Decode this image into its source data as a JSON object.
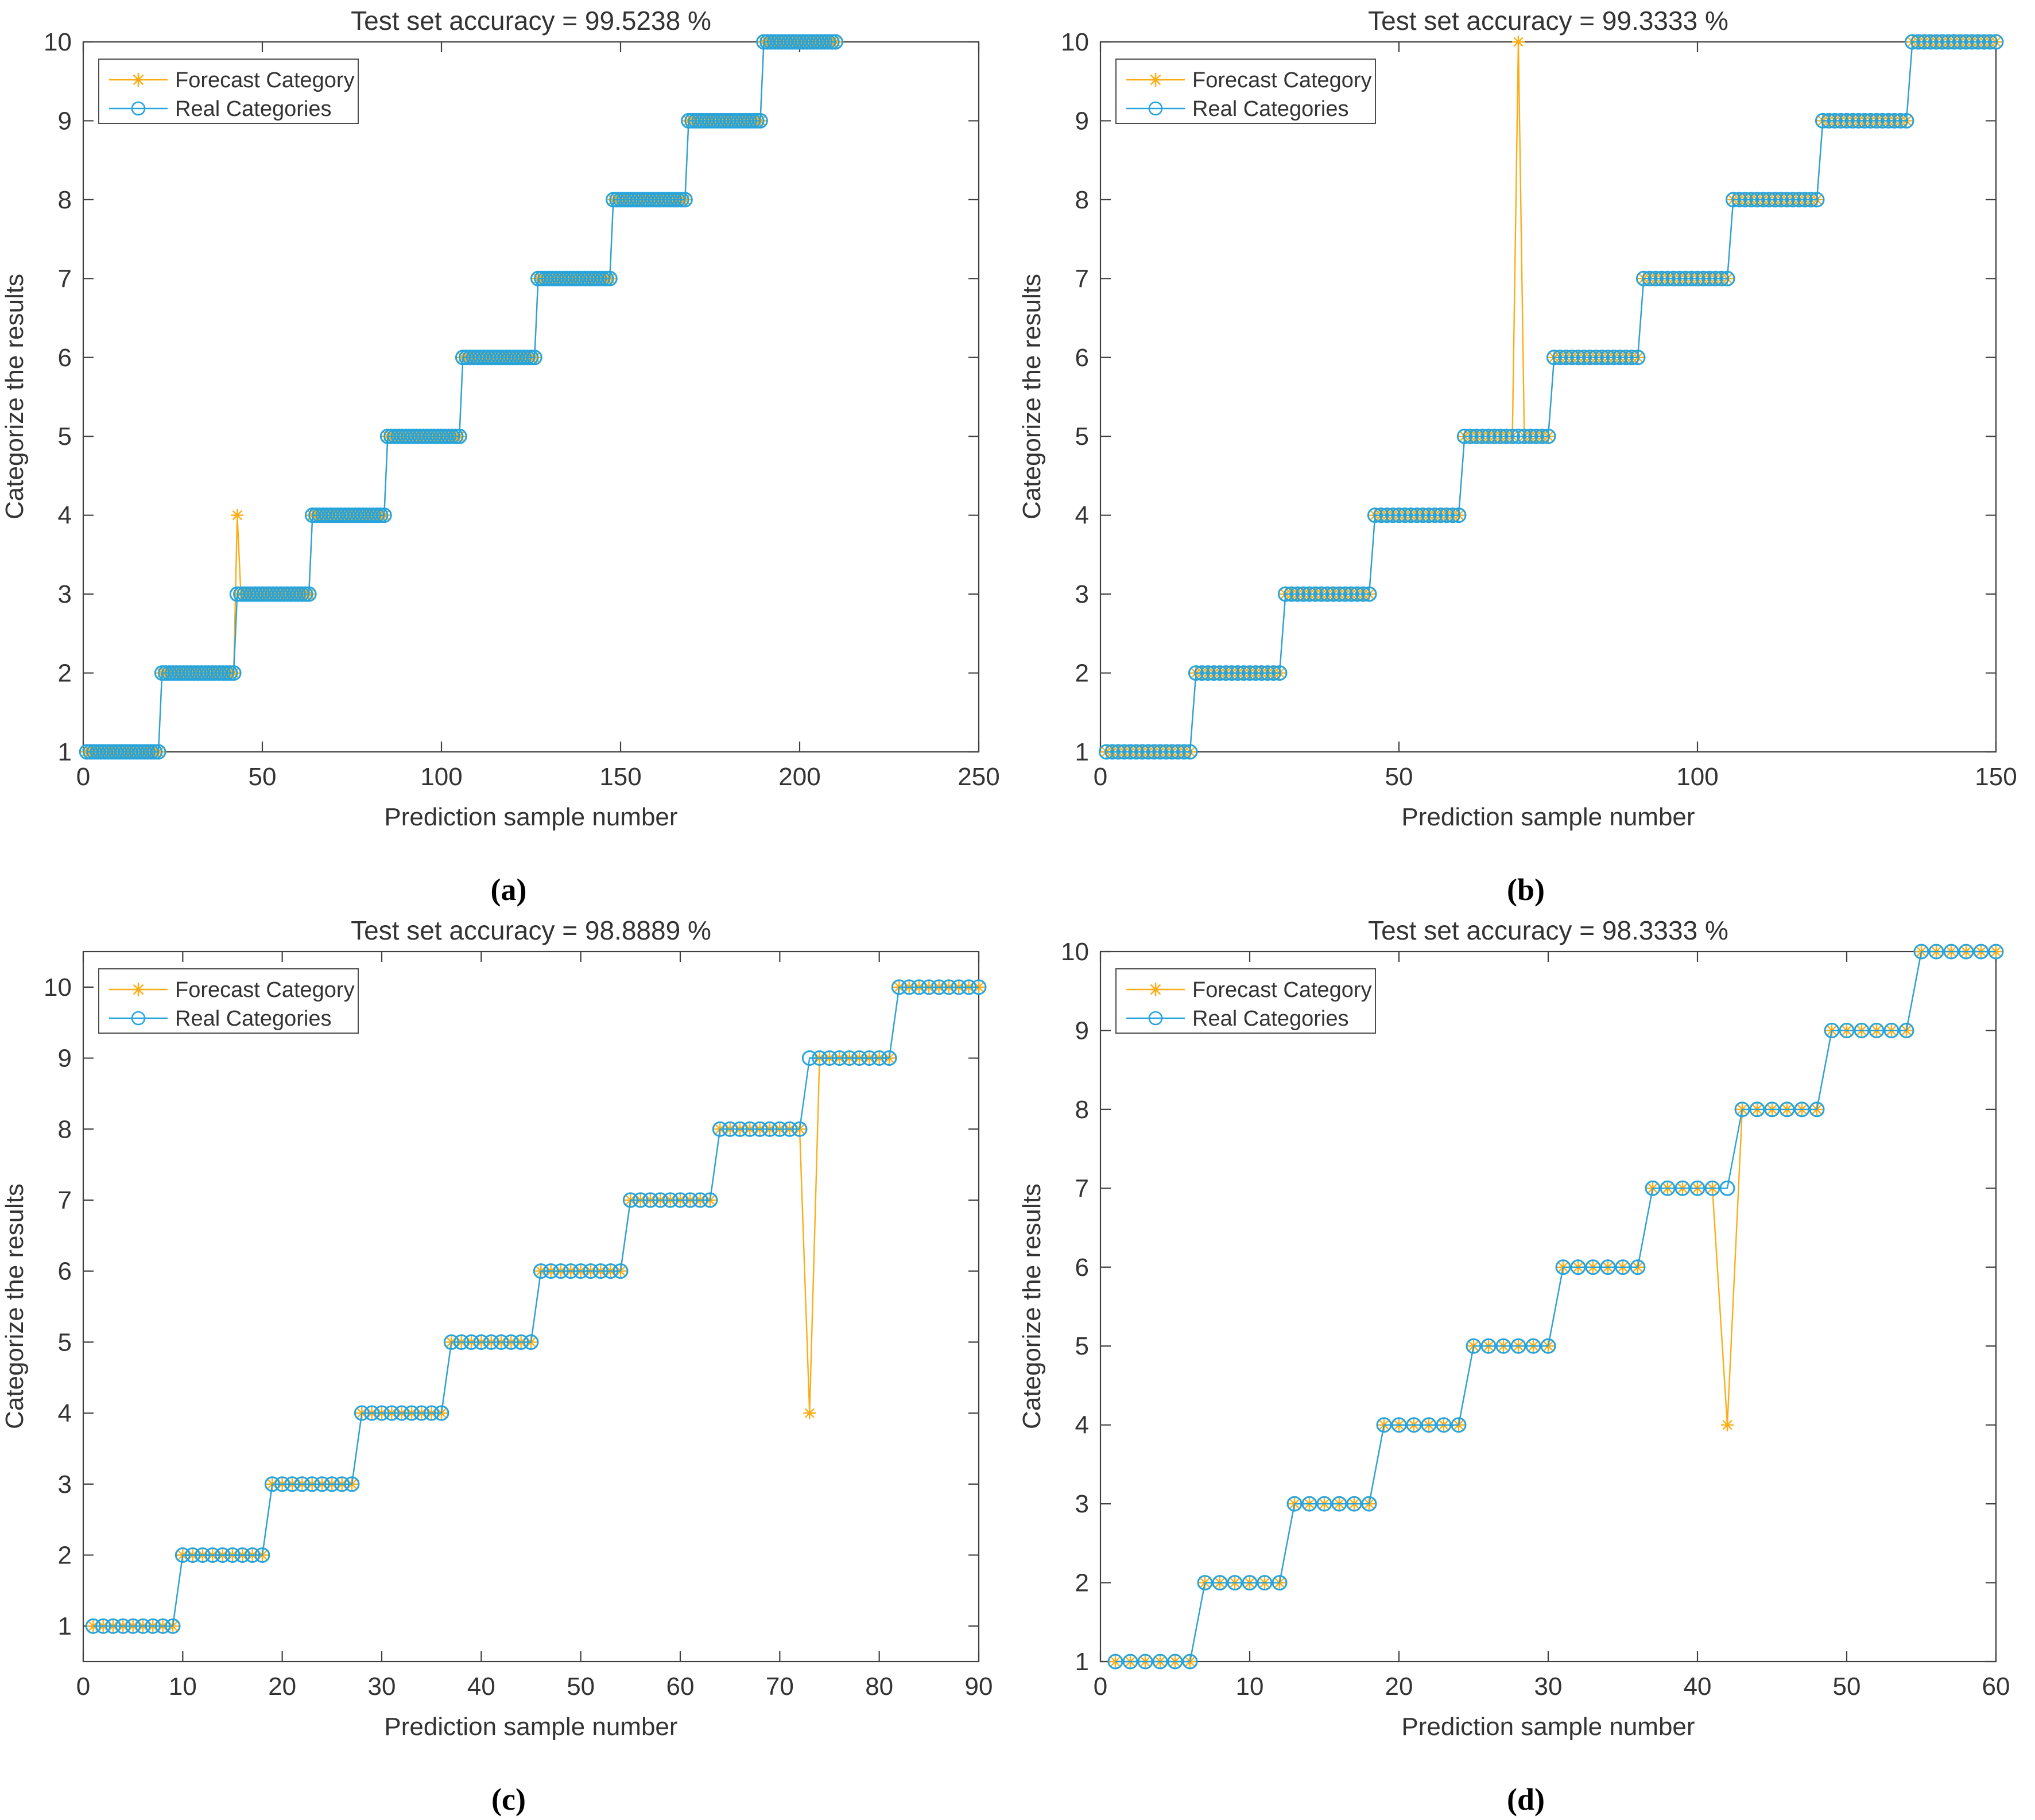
{
  "figure": {
    "background": "#FFFFFF",
    "axis_color": "#404040",
    "text_color": "#333333",
    "series": {
      "forecast": {
        "label": "Forecast Category",
        "color": "#FBAD18",
        "marker": "asterisk"
      },
      "real": {
        "label": "Real Categories",
        "color": "#27A4DC",
        "marker": "circle"
      }
    }
  },
  "chart_data": [
    {
      "type": "line",
      "panel_label": "(a)",
      "title": "Test set accuracy = 99.5238 %",
      "accuracy_percent": 99.5238,
      "xlabel": "Prediction sample number",
      "ylabel": "Categorize the results",
      "legend": [
        "Forecast Category",
        "Real Categories"
      ],
      "legend_position": "top-left",
      "grid": false,
      "n_samples": 210,
      "n_categories": 10,
      "samples_per_category": 21,
      "real_rule": "real(i) = ceil(i/21); staircase of 10 steps, 21 samples each, categories 1..10",
      "misclassified": [
        {
          "sample": 43,
          "real": 3,
          "forecast": 4
        }
      ],
      "x_range": [
        0,
        250
      ],
      "x_ticks": [
        0,
        50,
        100,
        150,
        200,
        250
      ],
      "y_range": [
        1,
        10
      ],
      "y_ticks": [
        1,
        2,
        3,
        4,
        5,
        6,
        7,
        8,
        9,
        10
      ]
    },
    {
      "type": "line",
      "panel_label": "(b)",
      "title": "Test set accuracy = 99.3333 %",
      "accuracy_percent": 99.3333,
      "xlabel": "Prediction sample number",
      "ylabel": "Categorize the results",
      "legend": [
        "Forecast Category",
        "Real Categories"
      ],
      "legend_position": "top-left",
      "grid": false,
      "n_samples": 150,
      "n_categories": 10,
      "samples_per_category": 15,
      "real_rule": "real(i) = ceil(i/15); staircase of 10 steps, 15 samples each, categories 1..10",
      "misclassified": [
        {
          "sample": 70,
          "real": 5,
          "forecast": 10
        }
      ],
      "x_range": [
        0,
        150
      ],
      "x_ticks": [
        0,
        50,
        100,
        150
      ],
      "y_range": [
        1,
        10
      ],
      "y_ticks": [
        1,
        2,
        3,
        4,
        5,
        6,
        7,
        8,
        9,
        10
      ]
    },
    {
      "type": "line",
      "panel_label": "(c)",
      "title": "Test set accuracy = 98.8889 %",
      "accuracy_percent": 98.8889,
      "xlabel": "Prediction sample number",
      "ylabel": "Categorize the results",
      "legend": [
        "Forecast Category",
        "Real Categories"
      ],
      "legend_position": "top-left",
      "grid": false,
      "n_samples": 90,
      "n_categories": 10,
      "samples_per_category": 9,
      "real_rule": "real(i) = ceil(i/9); staircase of 10 steps, 9 samples each, categories 1..10",
      "misclassified": [
        {
          "sample": 73,
          "real": 9,
          "forecast": 4
        }
      ],
      "x_range": [
        0,
        90
      ],
      "x_ticks": [
        0,
        10,
        20,
        30,
        40,
        50,
        60,
        70,
        80,
        90
      ],
      "y_range": [
        0.5,
        10.5
      ],
      "y_ticks": [
        1,
        2,
        3,
        4,
        5,
        6,
        7,
        8,
        9,
        10
      ]
    },
    {
      "type": "line",
      "panel_label": "(d)",
      "title": "Test set accuracy = 98.3333 %",
      "accuracy_percent": 98.3333,
      "xlabel": "Prediction sample number",
      "ylabel": "Categorize the results",
      "legend": [
        "Forecast Category",
        "Real Categories"
      ],
      "legend_position": "top-left",
      "grid": false,
      "n_samples": 60,
      "n_categories": 10,
      "samples_per_category": 6,
      "real_rule": "real(i) = ceil(i/6); staircase of 10 steps, 6 samples each, categories 1..10",
      "misclassified": [
        {
          "sample": 42,
          "real": 7,
          "forecast": 4
        }
      ],
      "x_range": [
        0,
        60
      ],
      "x_ticks": [
        0,
        10,
        20,
        30,
        40,
        50,
        60
      ],
      "y_range": [
        1,
        10
      ],
      "y_ticks": [
        1,
        2,
        3,
        4,
        5,
        6,
        7,
        8,
        9,
        10
      ]
    }
  ]
}
